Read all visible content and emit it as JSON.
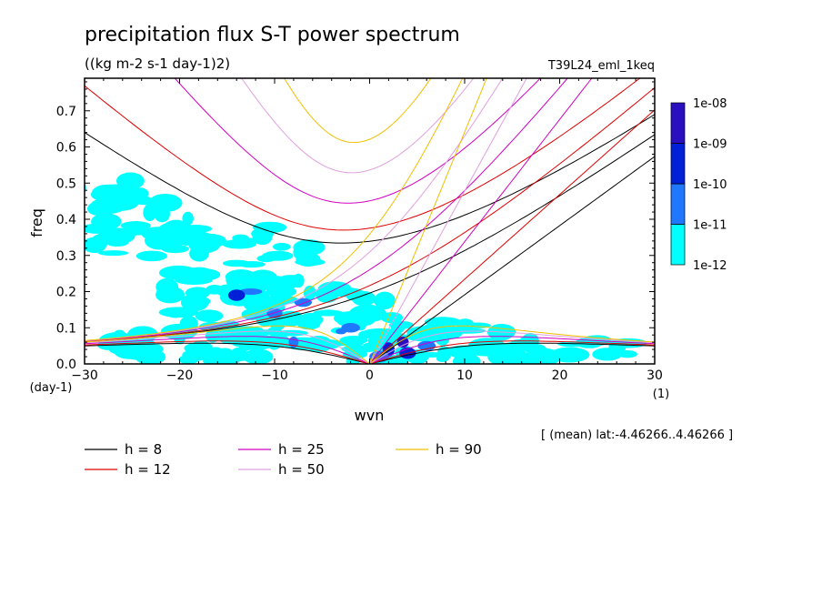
{
  "chart_data": {
    "type": "contour",
    "title": "precipitation flux S-T power spectrum",
    "subtitle": "((kg m-2 s-1 day-1)2)",
    "run_label": "T39L24_eml_1keq",
    "xlabel": "wvn",
    "x_unit": "(1)",
    "ylabel": "freq",
    "y_unit": "(day-1)",
    "xlim": [
      -30,
      30
    ],
    "ylim": [
      0,
      0.79
    ],
    "x_ticks": [
      -30,
      -20,
      -10,
      0,
      10,
      20,
      30
    ],
    "y_ticks": [
      0.0,
      0.1,
      0.2,
      0.3,
      0.4,
      0.5,
      0.6,
      0.7
    ],
    "footer": "[ (mean) lat:-4.46266..4.46266 ]",
    "colorbar": {
      "labels": [
        "1e-12",
        "1e-11",
        "1e-10",
        "1e-09",
        "1e-08"
      ],
      "colors": [
        "#00ffff",
        "#1f78ff",
        "#0020d8",
        "#2a0fc0"
      ]
    },
    "dispersion_curves": [
      {
        "label": "h =  8",
        "h": 8,
        "color": "#000000"
      },
      {
        "label": "h = 12",
        "h": 12,
        "color": "#e00000"
      },
      {
        "label": "h = 25",
        "h": 25,
        "color": "#d000c0"
      },
      {
        "label": "h = 50",
        "h": 50,
        "color": "#e0a0e0"
      },
      {
        "label": "h = 90",
        "h": 90,
        "color": "#f0c000"
      }
    ]
  }
}
